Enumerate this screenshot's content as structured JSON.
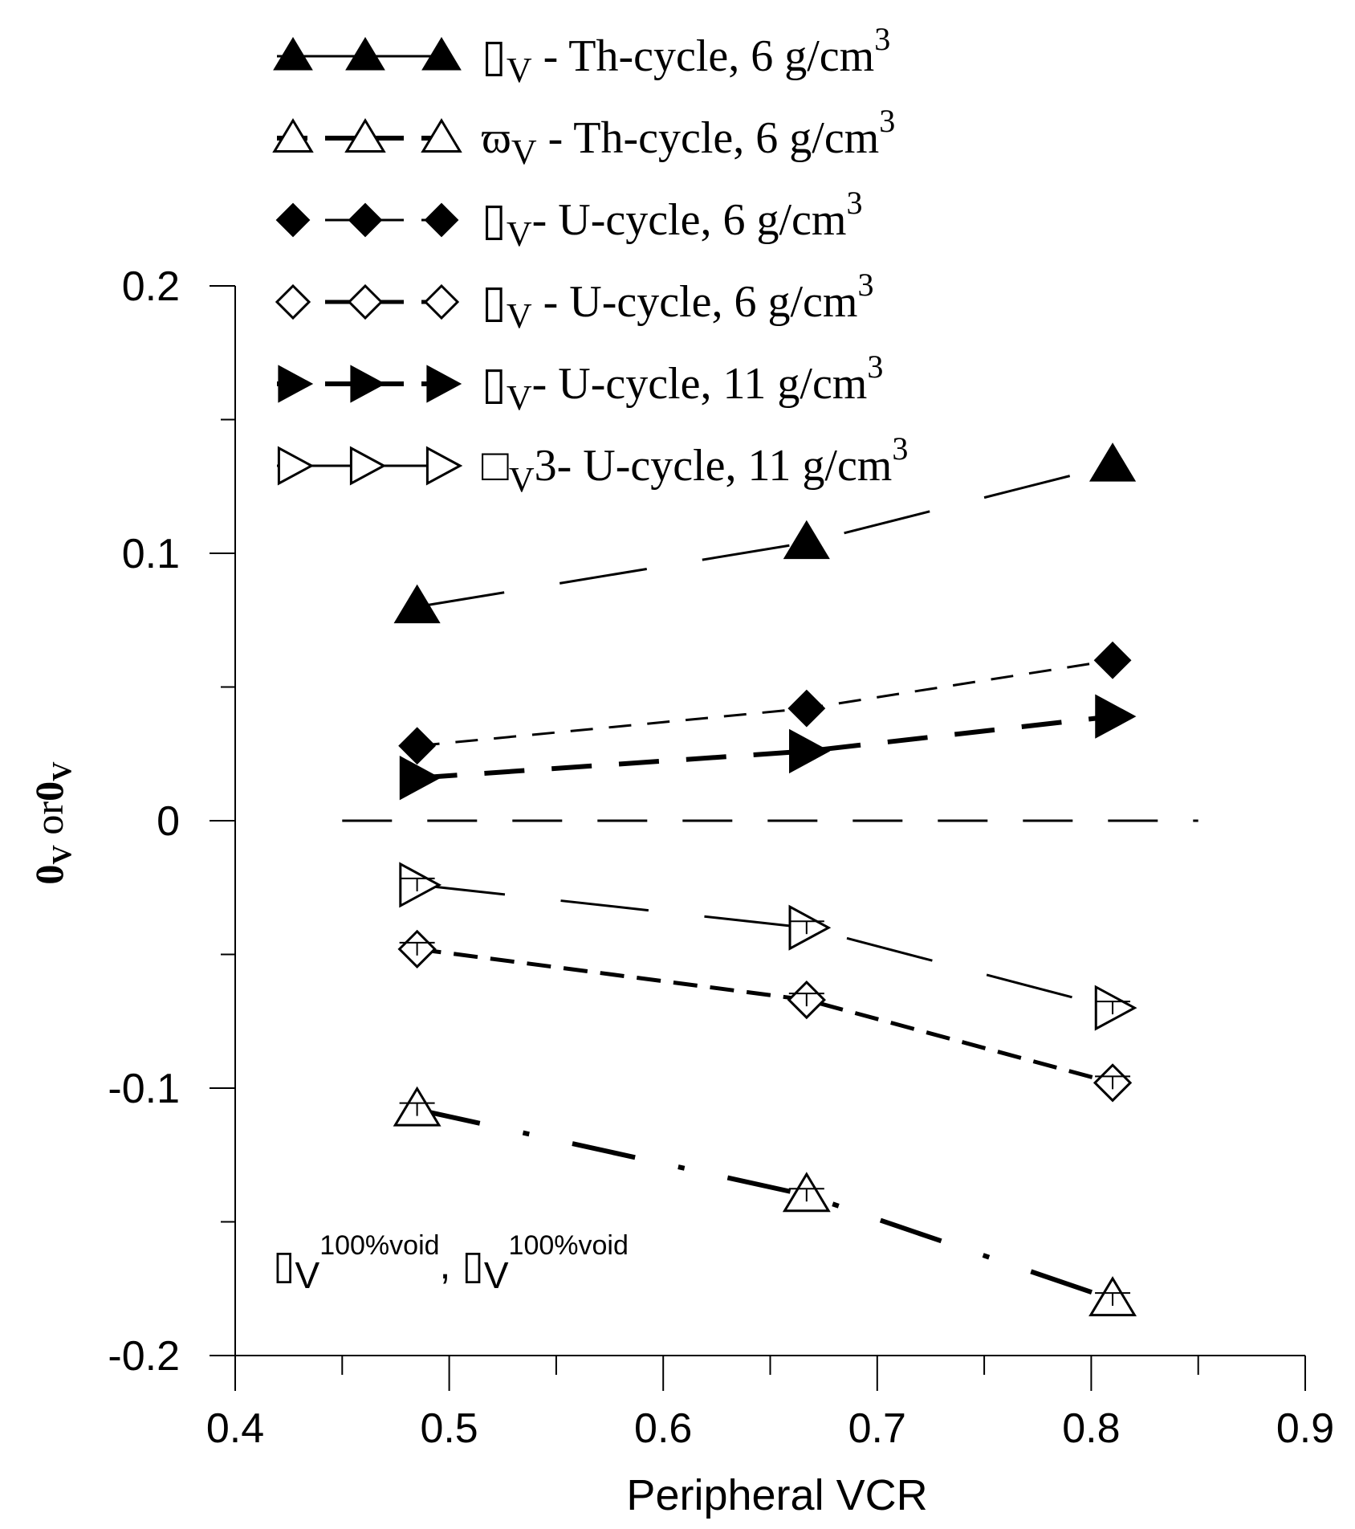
{
  "chart_data": {
    "type": "line",
    "xlabel": "Peripheral VCR",
    "ylabel": "0V or0V",
    "ylabel_parts": [
      "0",
      "V",
      " or",
      "0",
      "V"
    ],
    "xlim": [
      0.4,
      0.9
    ],
    "ylim": [
      -0.2,
      0.2
    ],
    "xticks": [
      {
        "value": 0.4,
        "label": "0.4"
      },
      {
        "value": 0.5,
        "label": "0.5"
      },
      {
        "value": 0.6,
        "label": "0.6"
      },
      {
        "value": 0.7,
        "label": "0.7"
      },
      {
        "value": 0.8,
        "label": "0.8"
      },
      {
        "value": 0.9,
        "label": "0.9"
      }
    ],
    "yticks": [
      {
        "value": 0.2,
        "label": "0.2"
      },
      {
        "value": 0.1,
        "label": "0.1"
      },
      {
        "value": 0,
        "label": "0"
      },
      {
        "value": -0.1,
        "label": "-0.1"
      },
      {
        "value": -0.2,
        "label": "-0.2"
      }
    ],
    "reference_line": {
      "y": 0,
      "x_range": [
        0.45,
        0.85
      ],
      "style": "dashed"
    },
    "annotation": {
      "sym1": "▯",
      "sub1": "V",
      "sup1": "100%void",
      "sep": ", ",
      "sym2": "▯",
      "sub2": "V",
      "sup2": "100%void"
    },
    "series": [
      {
        "name": "▯ V - Th-cycle, 6 g/cm3",
        "legend_symbol": "▯",
        "legend_sub": "V",
        "legend_text": " - Th-cycle, 6 g/cm",
        "legend_sup": "3",
        "marker": "triangle-up",
        "filled": true,
        "dash": "long",
        "x": [
          0.485,
          0.667,
          0.81
        ],
        "y": [
          0.08,
          0.104,
          0.133
        ],
        "error_bars": false
      },
      {
        "name": "ϖV - Th-cycle, 6 g/cm3",
        "legend_symbol": "ϖ",
        "legend_sub": "V",
        "legend_text": " - Th-cycle, 6 g/cm",
        "legend_sup": "3",
        "marker": "triangle-up",
        "filled": false,
        "dash": "dashdot",
        "x": [
          0.485,
          0.667,
          0.81
        ],
        "y": [
          -0.108,
          -0.14,
          -0.179
        ],
        "error_bars": true
      },
      {
        "name": "▯ V- U-cycle, 6 g/cm3",
        "legend_symbol": "▯",
        "legend_sub": "V",
        "legend_text": "- U-cycle, 6 g/cm",
        "legend_sup": "3",
        "marker": "diamond",
        "filled": true,
        "dash": "short",
        "x": [
          0.485,
          0.667,
          0.81
        ],
        "y": [
          0.028,
          0.042,
          0.06
        ],
        "error_bars": false
      },
      {
        "name": "▯ V - U-cycle, 6 g/cm3",
        "legend_symbol": "▯",
        "legend_sub": "V",
        "legend_text": " - U-cycle, 6 g/cm",
        "legend_sup": "3",
        "marker": "diamond",
        "filled": false,
        "dash": "short-thick",
        "x": [
          0.485,
          0.667,
          0.81
        ],
        "y": [
          -0.048,
          -0.067,
          -0.098
        ],
        "error_bars": true
      },
      {
        "name": "▯ V- U-cycle, 11 g/cm3",
        "legend_symbol": "▯",
        "legend_sub": "V",
        "legend_text": "- U-cycle, 11 g/cm",
        "legend_sup": "3",
        "marker": "triangle-right",
        "filled": true,
        "dash": "medium-thick",
        "x": [
          0.485,
          0.667,
          0.81
        ],
        "y": [
          0.016,
          0.026,
          0.039
        ],
        "error_bars": false
      },
      {
        "name": "□V3- U-cycle, 11 g/cm3",
        "legend_symbol": "□",
        "legend_sub": "V",
        "legend_text": "3- U-cycle, 11 g/cm",
        "legend_sup": "3",
        "marker": "triangle-right",
        "filled": false,
        "dash": "long",
        "x": [
          0.485,
          0.667,
          0.81
        ],
        "y": [
          -0.024,
          -0.04,
          -0.07
        ],
        "error_bars": true
      }
    ]
  }
}
